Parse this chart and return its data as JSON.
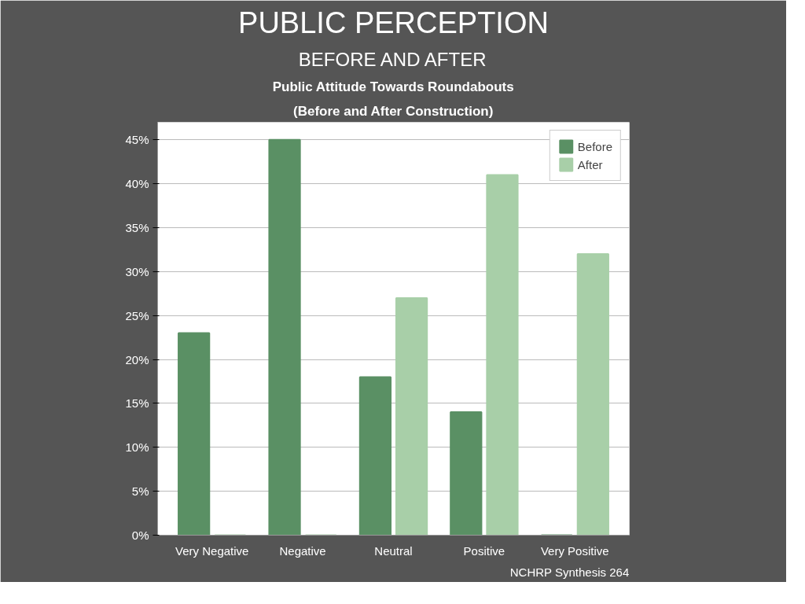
{
  "chart_data": {
    "type": "bar",
    "title": "PUBLIC PERCEPTION",
    "subtitle": "BEFORE AND AFTER",
    "annotations": [
      "Public Attitude Towards Roundabouts",
      "(Before and After Construction)",
      "NCHRP Synthesis 264"
    ],
    "categories": [
      "Very Negative",
      "Negative",
      "Neutral",
      "Positive",
      "Very Positive"
    ],
    "series": [
      {
        "name": "Before",
        "color": "#5a9064",
        "values": [
          23,
          45,
          18,
          14,
          0
        ]
      },
      {
        "name": "After",
        "color": "#a8cfa8",
        "values": [
          0,
          0,
          27,
          41,
          32
        ]
      }
    ],
    "ylim": [
      0,
      47
    ],
    "yticks": [
      {
        "value": 0,
        "label": "0%"
      },
      {
        "value": 5,
        "label": "5%"
      },
      {
        "value": 10,
        "label": "10%"
      },
      {
        "value": 15,
        "label": "15%"
      },
      {
        "value": 20,
        "label": "20%"
      },
      {
        "value": 25,
        "label": "25%"
      },
      {
        "value": 30,
        "label": "30%"
      },
      {
        "value": 35,
        "label": "35%"
      },
      {
        "value": 40,
        "label": "40%"
      },
      {
        "value": 45,
        "label": "45%"
      }
    ],
    "grid": "y",
    "legend": "top right"
  }
}
